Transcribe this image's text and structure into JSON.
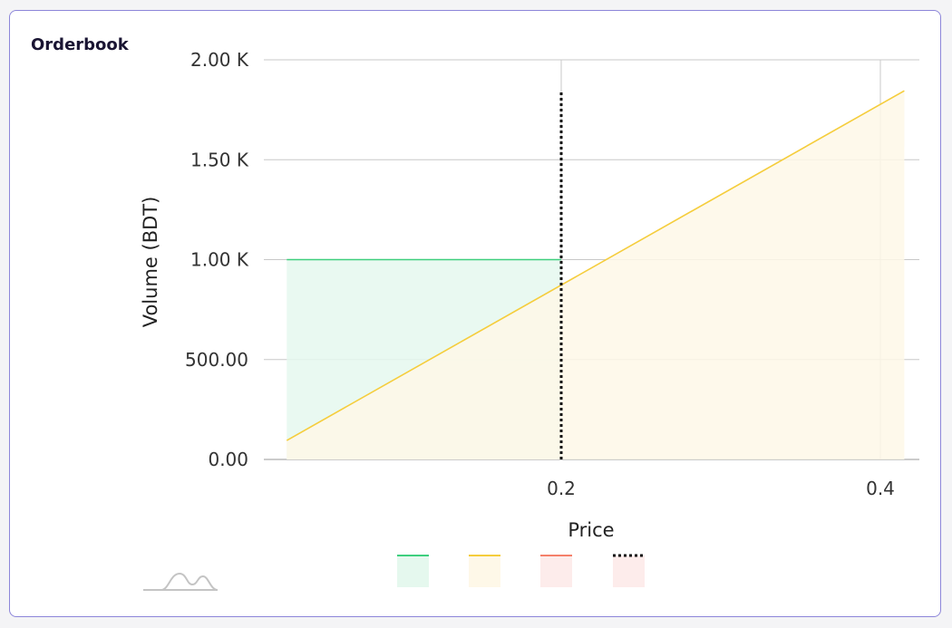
{
  "card": {
    "title": "Orderbook"
  },
  "chart_data": {
    "type": "area",
    "title": "Orderbook",
    "xlabel": "Price",
    "ylabel": "Volume (BDT)",
    "xlim": [
      0.02,
      0.415
    ],
    "ylim": [
      0,
      2000
    ],
    "x_ticks": [
      0.2,
      0.4
    ],
    "x_tick_labels": [
      "0.2",
      "0.4"
    ],
    "y_ticks": [
      0,
      500,
      1000,
      1500,
      2000
    ],
    "y_tick_labels": [
      "0.00",
      "500.00",
      "1.00 K",
      "1.50 K",
      "2.00 K"
    ],
    "grid": true,
    "series": [
      {
        "color": "#3ecf7e",
        "fill": "#e5f8ee",
        "points": [
          [
            0.028,
            0
          ],
          [
            0.028,
            1000
          ],
          [
            0.2,
            1000
          ],
          [
            0.2,
            0
          ]
        ]
      },
      {
        "color": "#f5cd3c",
        "fill": "#fef8e8",
        "points": [
          [
            0.028,
            0
          ],
          [
            0.028,
            95
          ],
          [
            0.415,
            1845
          ],
          [
            0.415,
            0
          ]
        ]
      },
      {
        "color": "#f5806a",
        "fill": "#fdeceb",
        "points": []
      },
      {
        "color": "#111111",
        "style": "dotted",
        "fill": "#fdeceb",
        "points": [
          [
            0.2,
            0
          ],
          [
            0.2,
            1845
          ]
        ]
      }
    ],
    "legend_position": "bottom-center"
  }
}
